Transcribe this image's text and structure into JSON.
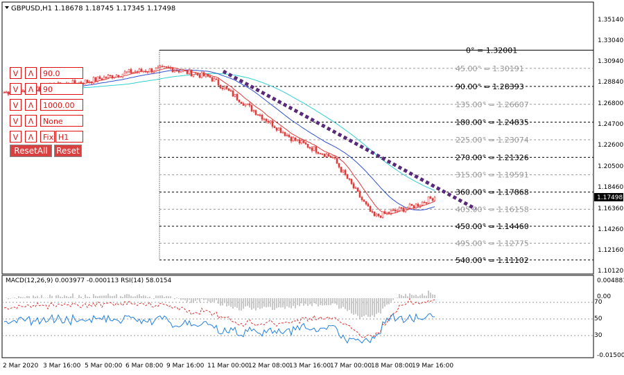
{
  "header": {
    "symbol_line": "GBPUSD,H1  1.18678 1.18745 1.17345 1.17498"
  },
  "price_scale": {
    "ticks": [
      "1.35140",
      "1.33040",
      "1.30940",
      "1.28840",
      "1.26800",
      "1.24700",
      "1.22600",
      "1.20500",
      "1.18460",
      "1.16360",
      "1.14260",
      "1.12160",
      "1.10120"
    ],
    "current": "1.17498"
  },
  "time_axis": {
    "labels": [
      "2 Mar 2020",
      "3 Mar 16:00",
      "5 Mar 00:00",
      "6 Mar 08:00",
      "9 Mar 16:00",
      "11 Mar 00:00",
      "12 Mar 08:00",
      "13 Mar 16:00",
      "17 Mar 00:00",
      "18 Mar 08:00",
      "19 Mar 16:00"
    ]
  },
  "controls": {
    "rows": [
      {
        "down": "V",
        "up": "Λ",
        "value": "90.0"
      },
      {
        "down": "V",
        "up": "Λ",
        "value": "90"
      },
      {
        "down": "V",
        "up": "Λ",
        "value": "1000.00"
      },
      {
        "down": "V",
        "up": "Λ",
        "value": "None"
      },
      {
        "down": "V",
        "up": "Λ",
        "value": "Fix",
        "extra": "H1"
      }
    ],
    "reset_all": "ResetAll",
    "reset": "Reset"
  },
  "fan_levels": [
    {
      "label": "0° = 1.32001",
      "price": 1.32001,
      "color": "#000000"
    },
    {
      "label": "45.00° = 1.30191",
      "price": 1.30191,
      "color": "#999999"
    },
    {
      "label": "90.00° = 1.28393",
      "price": 1.28393,
      "color": "#000000"
    },
    {
      "label": "135.00° = 1.26607",
      "price": 1.26607,
      "color": "#999999"
    },
    {
      "label": "180.00° = 1.24835",
      "price": 1.24835,
      "color": "#000000"
    },
    {
      "label": "225.00° = 1.23074",
      "price": 1.23074,
      "color": "#999999"
    },
    {
      "label": "270.00° = 1.21326",
      "price": 1.21326,
      "color": "#000000"
    },
    {
      "label": "315.00° = 1.19591",
      "price": 1.19591,
      "color": "#999999"
    },
    {
      "label": "360.00° = 1.17868",
      "price": 1.17868,
      "color": "#000000"
    },
    {
      "label": "405.00° = 1.16158",
      "price": 1.16158,
      "color": "#999999"
    },
    {
      "label": "450.00° = 1.14460",
      "price": 1.1446,
      "color": "#000000"
    },
    {
      "label": "495.00° = 1.12775",
      "price": 1.12775,
      "color": "#999999"
    },
    {
      "label": "540.00° = 1.11102",
      "price": 1.11102,
      "color": "#000000"
    }
  ],
  "indicator": {
    "title": "MACD(12,26,9) 0.003977 -0.000113  RSI(14) 58.0154",
    "right_ticks": [
      "0.004881",
      "0.00",
      "-0.015009"
    ],
    "rsi_levels": [
      "70",
      "50",
      "30"
    ]
  },
  "colors": {
    "candle": "#e03a3a",
    "ma_fast": "#e03a3a",
    "ma_mid": "#3050d0",
    "ma_slow": "#30d0d0",
    "trend": "#5a2a7a",
    "signal": "#e03030",
    "rsi": "#2080e0",
    "hist": "#c8c8c8"
  },
  "chart_data": {
    "type": "line",
    "title": "GBPUSD,H1",
    "x": [
      "2 Mar 2020",
      "3 Mar 16:00",
      "5 Mar 00:00",
      "6 Mar 08:00",
      "9 Mar 16:00",
      "11 Mar 00:00",
      "12 Mar 08:00",
      "13 Mar 16:00",
      "17 Mar 00:00",
      "18 Mar 08:00",
      "19 Mar 16:00"
    ],
    "series": [
      {
        "name": "GBPUSD",
        "values": [
          1.278,
          1.283,
          1.289,
          1.298,
          1.302,
          1.293,
          1.262,
          1.232,
          1.213,
          1.154,
          1.165
        ]
      }
    ],
    "ylim": [
      1.101,
      1.352
    ],
    "last": {
      "open": 1.18678,
      "high": 1.18745,
      "low": 1.17345,
      "close": 1.17498
    },
    "indicators": {
      "MACD": {
        "main": 0.003977,
        "signal": -0.000113
      },
      "RSI": 58.0154
    }
  }
}
